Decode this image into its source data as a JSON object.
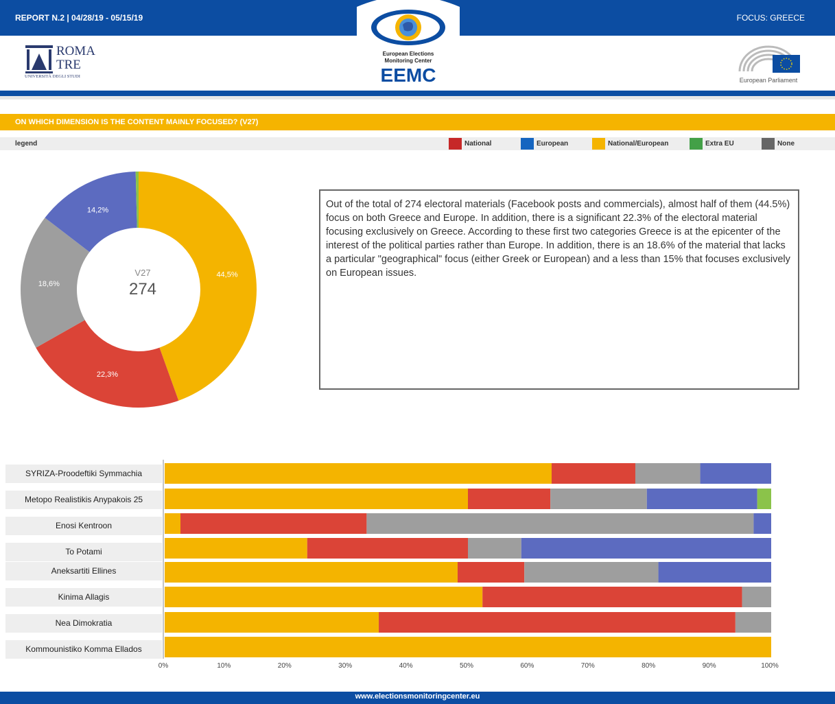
{
  "header": {
    "report": "REPORT N.2 | 04/28/19 - 05/15/19",
    "focus": "FOCUS: GREECE",
    "logo_left": {
      "line1": "ROMA",
      "line2": "TRE",
      "sub": "UNIVERSITÀ DEGLI STUDI"
    },
    "logo_center": {
      "line1": "European Elections",
      "line2": "Monitoring Center",
      "acronym": "EEMC"
    },
    "logo_right": {
      "caption": "European Parliament"
    }
  },
  "question": "ON WHICH DIMENSION IS THE CONTENT MAINLY FOCUSED? (V27)",
  "legend": {
    "label": "legend",
    "items": [
      {
        "name": "National",
        "color": "#c62828"
      },
      {
        "name": "European",
        "color": "#1565c0"
      },
      {
        "name": "National/European",
        "color": "#f5b400"
      },
      {
        "name": "Extra EU",
        "color": "#43a047"
      },
      {
        "name": "None",
        "color": "#666666"
      }
    ]
  },
  "description": "Out of the total of 274 electoral materials (Facebook posts and commercials), almost half of them (44.5%) focus on both Greece and Europe. In addition, there is a significant 22.3% of the electoral material focusing exclusively on Greece. According to these first two categories Greece is at the epicenter of the interest of the political parties rather than Europe. In addition, there is an 18.6% of the material that lacks a particular \"geographical\" focus (either Greek or European) and a less than 15% that focuses exclusively on European issues.",
  "footer": "www.electionsmonitoringcenter.eu",
  "chart_data": [
    {
      "type": "pie",
      "variant": "donut",
      "center_label": "V27",
      "center_value": "274",
      "slices": [
        {
          "name": "National/European",
          "value": 44.5,
          "label": "44,5%",
          "color": "#f4b400"
        },
        {
          "name": "National",
          "value": 22.3,
          "label": "22,3%",
          "color": "#db4437"
        },
        {
          "name": "None",
          "value": 18.6,
          "label": "18,6%",
          "color": "#9e9e9e"
        },
        {
          "name": "European",
          "value": 14.2,
          "label": "14,2%",
          "color": "#5c6bc0"
        },
        {
          "name": "Extra EU",
          "value": 0.4,
          "label": "",
          "color": "#8bc34a"
        }
      ]
    },
    {
      "type": "bar",
      "orientation": "horizontal",
      "stacked": "100%",
      "xlim": [
        0,
        100
      ],
      "ticks": [
        "0%",
        "10%",
        "20%",
        "30%",
        "40%",
        "50%",
        "60%",
        "70%",
        "80%",
        "90%",
        "100%"
      ],
      "series_order": [
        "National/European",
        "National",
        "None",
        "European",
        "Extra EU"
      ],
      "colors": {
        "National/European": "#f4b400",
        "National": "#db4437",
        "None": "#9e9e9e",
        "European": "#5c6bc0",
        "Extra EU": "#8bc34a"
      },
      "categories": [
        "SYRIZA-Proodeftiki Symmachia",
        "Metopo Realistikis Anypakois 25",
        "Enosi Kentroon",
        "To Potami",
        "Aneksartiti Ellines",
        "Kinima Allagis",
        "Nea Dimokratia",
        "Kommounistiko Komma Ellados"
      ],
      "series": [
        {
          "name": "National/European",
          "values": [
            63.8,
            50.0,
            2.6,
            23.5,
            48.3,
            52.4,
            35.3,
            100
          ]
        },
        {
          "name": "National",
          "values": [
            13.8,
            13.6,
            30.7,
            26.5,
            11.0,
            42.8,
            58.8,
            0
          ]
        },
        {
          "name": "None",
          "values": [
            10.7,
            15.9,
            63.8,
            8.8,
            22.1,
            4.8,
            5.9,
            0
          ]
        },
        {
          "name": "European",
          "values": [
            11.7,
            18.2,
            2.9,
            41.2,
            18.6,
            0,
            0,
            0
          ]
        },
        {
          "name": "Extra EU",
          "values": [
            0,
            2.3,
            0,
            0,
            0,
            0,
            0,
            0
          ]
        }
      ]
    }
  ]
}
